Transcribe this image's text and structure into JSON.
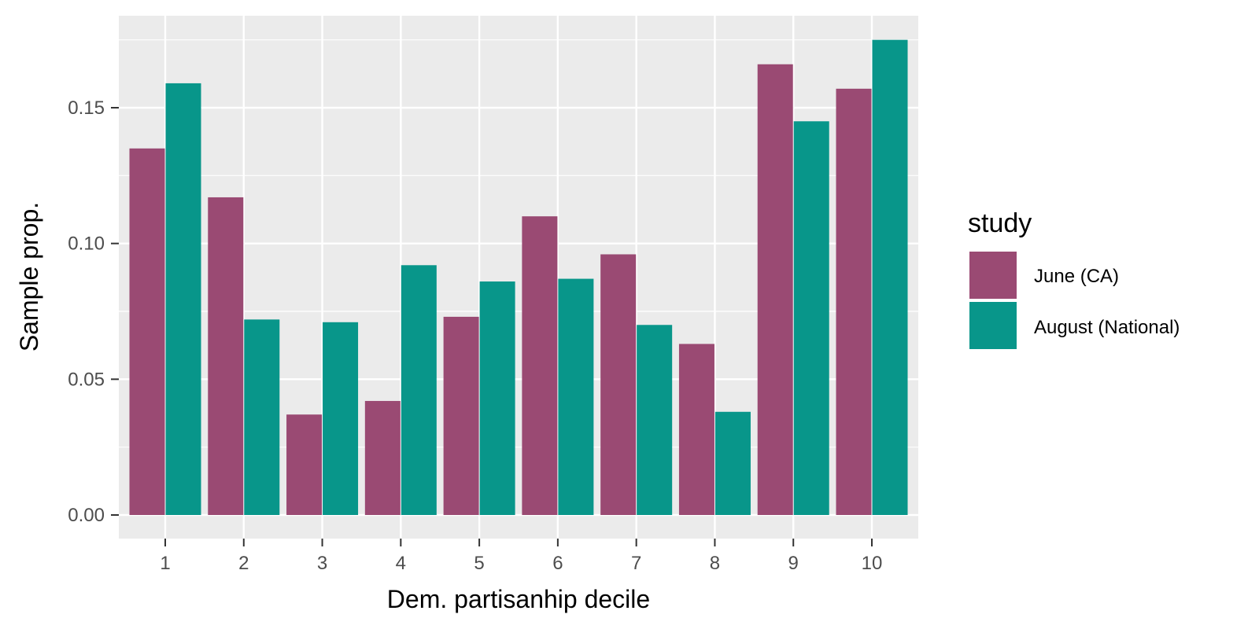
{
  "chart_data": {
    "type": "bar",
    "xlabel": "Dem. partisanhip decile",
    "ylabel": "Sample prop.",
    "categories": [
      "1",
      "2",
      "3",
      "4",
      "5",
      "6",
      "7",
      "8",
      "9",
      "10"
    ],
    "series": [
      {
        "name": "June (CA)",
        "color": "#9A4A73",
        "values": [
          0.135,
          0.117,
          0.037,
          0.042,
          0.073,
          0.11,
          0.096,
          0.063,
          0.166,
          0.157
        ]
      },
      {
        "name": "August (National)",
        "color": "#08968A",
        "values": [
          0.159,
          0.072,
          0.071,
          0.092,
          0.086,
          0.087,
          0.07,
          0.038,
          0.145,
          0.175
        ]
      }
    ],
    "ylim": [
      0,
      0.18
    ],
    "yticks": [
      0.0,
      0.05,
      0.1,
      0.15
    ],
    "ytick_labels": [
      "0.00",
      "0.05",
      "0.10",
      "0.15"
    ],
    "grid": true,
    "legend": {
      "title": "study",
      "position": "right"
    }
  }
}
